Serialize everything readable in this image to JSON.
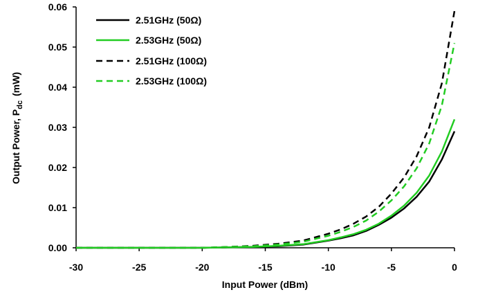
{
  "chart_data": {
    "type": "line",
    "xlabel": "Input Power (dBm)",
    "ylabel_main": "Output Power, P",
    "ylabel_sub": "dc",
    "ylabel_unit": "(mW)",
    "xlim": [
      -30,
      0
    ],
    "ylim": [
      0,
      0.06
    ],
    "xticks": [
      -30,
      -25,
      -20,
      -15,
      -10,
      -5,
      0
    ],
    "xtick_labels": [
      "-30",
      "-25",
      "-20",
      "-15",
      "-10",
      "-5",
      "0"
    ],
    "yticks": [
      0,
      0.01,
      0.02,
      0.03,
      0.04,
      0.05,
      0.06
    ],
    "ytick_labels": [
      "0.00",
      "0.01",
      "0.02",
      "0.03",
      "0.04",
      "0.05",
      "0.06"
    ],
    "grid": false,
    "legend_position": "top-left",
    "series": [
      {
        "name": "2.51GHz (50Ω)",
        "color": "#000000",
        "dash": "solid",
        "x": [
          -30,
          -28,
          -26,
          -24,
          -22,
          -20,
          -18,
          -16,
          -14,
          -12,
          -10,
          -9,
          -8,
          -7,
          -6,
          -5,
          -4,
          -3,
          -2,
          -1,
          0
        ],
        "y": [
          0,
          0,
          0,
          0,
          0,
          0,
          0.0001,
          0.0002,
          0.0004,
          0.0008,
          0.0018,
          0.0024,
          0.0031,
          0.0042,
          0.0057,
          0.0075,
          0.0098,
          0.0127,
          0.0165,
          0.022,
          0.029
        ]
      },
      {
        "name": "2.53GHz (50Ω)",
        "color": "#22cc22",
        "dash": "solid",
        "x": [
          -30,
          -28,
          -26,
          -24,
          -22,
          -20,
          -18,
          -16,
          -14,
          -12,
          -10,
          -9,
          -8,
          -7,
          -6,
          -5,
          -4,
          -3,
          -2,
          -1,
          0
        ],
        "y": [
          0,
          0,
          0,
          0,
          0,
          0,
          0.0001,
          0.0002,
          0.0005,
          0.0009,
          0.0019,
          0.0026,
          0.0034,
          0.0045,
          0.006,
          0.008,
          0.0105,
          0.0137,
          0.018,
          0.024,
          0.032
        ]
      },
      {
        "name": "2.51GHz (100Ω)",
        "color": "#000000",
        "dash": "dashed",
        "x": [
          -30,
          -28,
          -26,
          -24,
          -22,
          -20,
          -18,
          -16,
          -14,
          -12,
          -10,
          -9,
          -8,
          -7,
          -6,
          -5,
          -4,
          -3,
          -2,
          -1,
          0
        ],
        "y": [
          0,
          0,
          0,
          0,
          0,
          0,
          0.0002,
          0.0005,
          0.001,
          0.0018,
          0.0035,
          0.0046,
          0.006,
          0.0078,
          0.0102,
          0.0135,
          0.0175,
          0.0228,
          0.03,
          0.041,
          0.059
        ]
      },
      {
        "name": "2.53GHz (100Ω)",
        "color": "#22cc22",
        "dash": "dashed",
        "x": [
          -30,
          -28,
          -26,
          -24,
          -22,
          -20,
          -18,
          -16,
          -14,
          -12,
          -10,
          -9,
          -8,
          -7,
          -6,
          -5,
          -4,
          -3,
          -2,
          -1,
          0
        ],
        "y": [
          0,
          0,
          0,
          0,
          0,
          0,
          0.0002,
          0.0004,
          0.0008,
          0.0015,
          0.003,
          0.004,
          0.0052,
          0.0068,
          0.009,
          0.0118,
          0.0153,
          0.0198,
          0.026,
          0.0355,
          0.051
        ]
      }
    ]
  }
}
